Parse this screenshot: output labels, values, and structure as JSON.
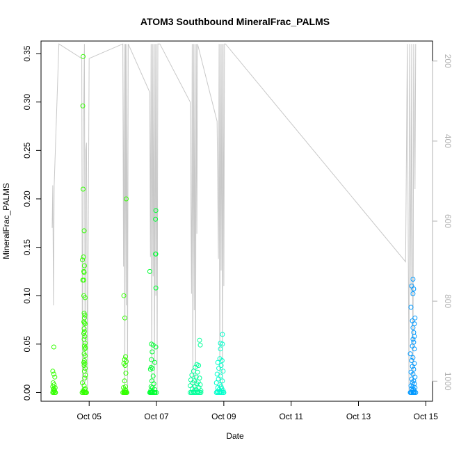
{
  "chart_data": {
    "type": "scatter",
    "title": "ATOM3 Southbound MineralFrac_PALMS",
    "xlabel": "Date",
    "ylabel": "MineralFrac_PALMS",
    "x_ticks": [
      {
        "label": "Oct 05",
        "day": 5
      },
      {
        "label": "Oct 07",
        "day": 7
      },
      {
        "label": "Oct 09",
        "day": 9
      },
      {
        "label": "Oct 11",
        "day": 11
      },
      {
        "label": "Oct 13",
        "day": 13
      },
      {
        "label": "Oct 15",
        "day": 15
      }
    ],
    "xlim": [
      3.57,
      15.2
    ],
    "ylim": [
      -0.009,
      0.363
    ],
    "y_ticks": [
      0.0,
      0.05,
      0.1,
      0.15,
      0.2,
      0.25,
      0.3,
      0.35
    ],
    "y_tick_labels": [
      "0.00",
      "0.05",
      "0.10",
      "0.15",
      "0.20",
      "0.25",
      "0.30",
      "0.35"
    ],
    "y2_ticks": [
      200,
      400,
      600,
      800,
      1000
    ],
    "y2_tick_labels": [
      "200",
      "400",
      "600",
      "800",
      "1000"
    ],
    "y2lim": [
      1050,
      150
    ],
    "colors": {
      "flight1": "#33ff00",
      "flight2": "#00ff33",
      "flight3": "#00ff99",
      "flight4": "#00ffcc",
      "flight5": "#0099ff",
      "pressure": "#c8c8c8"
    },
    "series": [
      {
        "color": "flight1",
        "points": [
          [
            3.95,
            0.047
          ],
          [
            3.92,
            0.022
          ],
          [
            3.95,
            0.019
          ],
          [
            3.98,
            0.016
          ],
          [
            3.93,
            0.01
          ],
          [
            3.96,
            0.008
          ],
          [
            3.92,
            0.006
          ],
          [
            3.99,
            0.005
          ],
          [
            3.95,
            0.004
          ],
          [
            3.94,
            0.003
          ],
          [
            3.97,
            0.002
          ],
          [
            3.93,
            0.001
          ],
          [
            3.96,
            0.0
          ],
          [
            3.99,
            0.0
          ],
          [
            3.92,
            0.0
          ],
          [
            4.0,
            0.0
          ],
          [
            4.82,
            0.347
          ],
          [
            4.81,
            0.296
          ],
          [
            4.82,
            0.21
          ],
          [
            4.85,
            0.167
          ],
          [
            4.83,
            0.14
          ],
          [
            4.8,
            0.137
          ],
          [
            4.86,
            0.131
          ],
          [
            4.84,
            0.125
          ],
          [
            4.85,
            0.124
          ],
          [
            4.81,
            0.116
          ],
          [
            4.84,
            0.116
          ],
          [
            4.84,
            0.1
          ],
          [
            4.88,
            0.098
          ],
          [
            4.85,
            0.082
          ],
          [
            4.87,
            0.08
          ],
          [
            4.86,
            0.077
          ],
          [
            4.84,
            0.073
          ],
          [
            4.86,
            0.072
          ],
          [
            4.88,
            0.071
          ],
          [
            4.85,
            0.066
          ],
          [
            4.86,
            0.063
          ],
          [
            4.84,
            0.061
          ],
          [
            4.87,
            0.058
          ],
          [
            4.85,
            0.055
          ],
          [
            4.88,
            0.051
          ],
          [
            4.86,
            0.048
          ],
          [
            4.89,
            0.046
          ],
          [
            4.87,
            0.045
          ],
          [
            4.85,
            0.04
          ],
          [
            4.88,
            0.038
          ],
          [
            4.86,
            0.033
          ],
          [
            4.84,
            0.031
          ],
          [
            4.87,
            0.03
          ],
          [
            4.85,
            0.028
          ],
          [
            4.88,
            0.025
          ],
          [
            4.86,
            0.022
          ],
          [
            4.89,
            0.018
          ],
          [
            4.87,
            0.015
          ],
          [
            4.8,
            0.01
          ],
          [
            4.85,
            0.007
          ],
          [
            4.88,
            0.004
          ],
          [
            4.86,
            0.003
          ],
          [
            4.82,
            0.002
          ],
          [
            4.84,
            0.001
          ],
          [
            4.86,
            0.0
          ],
          [
            4.88,
            0.0
          ],
          [
            4.9,
            0.0
          ],
          [
            4.82,
            0.0
          ],
          [
            4.92,
            0.0
          ],
          [
            4.79,
            0.0
          ],
          [
            6.1,
            0.2
          ],
          [
            6.03,
            0.1
          ],
          [
            6.06,
            0.077
          ],
          [
            6.08,
            0.037
          ],
          [
            6.05,
            0.034
          ],
          [
            6.1,
            0.032
          ],
          [
            6.03,
            0.03
          ],
          [
            6.07,
            0.028
          ],
          [
            6.09,
            0.02
          ],
          [
            6.05,
            0.012
          ],
          [
            6.08,
            0.006
          ],
          [
            6.02,
            0.005
          ],
          [
            6.06,
            0.003
          ],
          [
            6.09,
            0.002
          ],
          [
            6.04,
            0.001
          ],
          [
            6.07,
            0.0
          ],
          [
            6.1,
            0.0
          ],
          [
            6.03,
            0.0
          ],
          [
            6.12,
            0.0
          ],
          [
            6.0,
            0.0
          ],
          [
            6.05,
            0.0
          ],
          [
            6.08,
            0.0
          ]
        ]
      },
      {
        "color": "flight2",
        "points": [
          [
            6.98,
            0.188
          ],
          [
            6.97,
            0.179
          ],
          [
            6.97,
            0.143
          ],
          [
            6.98,
            0.143
          ],
          [
            6.8,
            0.125
          ],
          [
            6.98,
            0.108
          ],
          [
            6.85,
            0.05
          ],
          [
            6.9,
            0.049
          ],
          [
            6.98,
            0.047
          ],
          [
            6.87,
            0.042
          ],
          [
            6.85,
            0.034
          ],
          [
            6.95,
            0.031
          ],
          [
            6.84,
            0.026
          ],
          [
            6.88,
            0.025
          ],
          [
            6.82,
            0.024
          ],
          [
            6.9,
            0.017
          ],
          [
            6.86,
            0.012
          ],
          [
            6.92,
            0.009
          ],
          [
            6.84,
            0.006
          ],
          [
            6.88,
            0.005
          ],
          [
            6.95,
            0.003
          ],
          [
            6.83,
            0.002
          ],
          [
            6.87,
            0.001
          ],
          [
            6.8,
            0.0
          ],
          [
            6.84,
            0.0
          ],
          [
            6.88,
            0.0
          ],
          [
            6.92,
            0.0
          ],
          [
            6.96,
            0.0
          ],
          [
            7.0,
            0.0
          ],
          [
            6.86,
            0.0
          ],
          [
            6.94,
            0.0
          ],
          [
            6.82,
            0.0
          ]
        ]
      },
      {
        "color": "flight3",
        "points": [
          [
            8.28,
            0.054
          ],
          [
            8.3,
            0.049
          ],
          [
            8.2,
            0.029
          ],
          [
            8.25,
            0.028
          ],
          [
            8.15,
            0.026
          ],
          [
            8.1,
            0.022
          ],
          [
            8.22,
            0.021
          ],
          [
            8.05,
            0.018
          ],
          [
            8.18,
            0.016
          ],
          [
            8.28,
            0.015
          ],
          [
            8.02,
            0.013
          ],
          [
            8.12,
            0.012
          ],
          [
            8.24,
            0.011
          ],
          [
            8.08,
            0.01
          ],
          [
            8.2,
            0.009
          ],
          [
            8.3,
            0.008
          ],
          [
            8.0,
            0.007
          ],
          [
            8.14,
            0.006
          ],
          [
            8.26,
            0.005
          ],
          [
            8.06,
            0.004
          ],
          [
            8.18,
            0.003
          ],
          [
            8.32,
            0.002
          ],
          [
            8.1,
            0.001
          ],
          [
            8.22,
            0.001
          ],
          [
            8.0,
            0.0
          ],
          [
            8.04,
            0.0
          ],
          [
            8.08,
            0.0
          ],
          [
            8.12,
            0.0
          ],
          [
            8.16,
            0.0
          ],
          [
            8.2,
            0.0
          ],
          [
            8.24,
            0.0
          ],
          [
            8.28,
            0.0
          ],
          [
            8.32,
            0.0
          ]
        ]
      },
      {
        "color": "flight4",
        "points": [
          [
            8.96,
            0.06
          ],
          [
            8.9,
            0.051
          ],
          [
            8.96,
            0.05
          ],
          [
            8.9,
            0.045
          ],
          [
            8.88,
            0.035
          ],
          [
            8.95,
            0.033
          ],
          [
            8.82,
            0.031
          ],
          [
            8.92,
            0.028
          ],
          [
            8.85,
            0.025
          ],
          [
            8.98,
            0.022
          ],
          [
            8.8,
            0.019
          ],
          [
            8.9,
            0.017
          ],
          [
            8.84,
            0.014
          ],
          [
            8.96,
            0.012
          ],
          [
            8.78,
            0.01
          ],
          [
            8.88,
            0.008
          ],
          [
            8.92,
            0.006
          ],
          [
            8.82,
            0.005
          ],
          [
            8.94,
            0.004
          ],
          [
            8.86,
            0.003
          ],
          [
            8.98,
            0.002
          ],
          [
            8.8,
            0.001
          ],
          [
            8.9,
            0.001
          ],
          [
            8.78,
            0.0
          ],
          [
            8.82,
            0.0
          ],
          [
            8.86,
            0.0
          ],
          [
            8.9,
            0.0
          ],
          [
            8.94,
            0.0
          ],
          [
            8.98,
            0.0
          ],
          [
            9.0,
            0.0
          ]
        ]
      },
      {
        "color": "flight5",
        "points": [
          [
            14.62,
            0.117
          ],
          [
            14.58,
            0.11
          ],
          [
            14.64,
            0.107
          ],
          [
            14.62,
            0.102
          ],
          [
            14.56,
            0.088
          ],
          [
            14.68,
            0.077
          ],
          [
            14.6,
            0.074
          ],
          [
            14.66,
            0.071
          ],
          [
            14.62,
            0.067
          ],
          [
            14.64,
            0.062
          ],
          [
            14.66,
            0.058
          ],
          [
            14.62,
            0.055
          ],
          [
            14.64,
            0.052
          ],
          [
            14.6,
            0.048
          ],
          [
            14.66,
            0.045
          ],
          [
            14.54,
            0.04
          ],
          [
            14.62,
            0.036
          ],
          [
            14.58,
            0.033
          ],
          [
            14.66,
            0.03
          ],
          [
            14.6,
            0.027
          ],
          [
            14.64,
            0.024
          ],
          [
            14.56,
            0.021
          ],
          [
            14.62,
            0.019
          ],
          [
            14.68,
            0.016
          ],
          [
            14.58,
            0.014
          ],
          [
            14.64,
            0.012
          ],
          [
            14.6,
            0.01
          ],
          [
            14.66,
            0.009
          ],
          [
            14.56,
            0.007
          ],
          [
            14.62,
            0.006
          ],
          [
            14.68,
            0.005
          ],
          [
            14.58,
            0.004
          ],
          [
            14.64,
            0.003
          ],
          [
            14.6,
            0.002
          ],
          [
            14.66,
            0.001
          ],
          [
            14.54,
            0.0
          ],
          [
            14.58,
            0.0
          ],
          [
            14.62,
            0.0
          ],
          [
            14.66,
            0.0
          ],
          [
            14.7,
            0.0
          ],
          [
            14.56,
            0.0
          ],
          [
            14.64,
            0.0
          ]
        ]
      }
    ],
    "pressure_trace": [
      [
        3.9,
        0.17
      ],
      [
        3.92,
        0.214
      ],
      [
        3.94,
        0.09
      ],
      [
        3.96,
        0.214
      ],
      [
        4.1,
        0.36
      ],
      [
        4.78,
        0.345
      ],
      [
        4.8,
        0.0
      ],
      [
        4.82,
        0.23
      ],
      [
        4.86,
        0.36
      ],
      [
        4.88,
        0.01
      ],
      [
        4.9,
        0.25
      ],
      [
        4.92,
        0.258
      ],
      [
        4.95,
        0.0
      ],
      [
        5.0,
        0.345
      ],
      [
        6.0,
        0.36
      ],
      [
        6.02,
        0.13
      ],
      [
        6.04,
        0.36
      ],
      [
        6.06,
        0.0
      ],
      [
        6.08,
        0.36
      ],
      [
        6.1,
        0.09
      ],
      [
        6.12,
        0.36
      ],
      [
        6.14,
        0.0
      ],
      [
        6.16,
        0.36
      ],
      [
        6.8,
        0.31
      ],
      [
        6.82,
        0.14
      ],
      [
        6.84,
        0.36
      ],
      [
        6.86,
        0.0
      ],
      [
        6.88,
        0.36
      ],
      [
        6.9,
        0.12
      ],
      [
        6.92,
        0.36
      ],
      [
        6.94,
        0.0
      ],
      [
        6.96,
        0.36
      ],
      [
        6.98,
        0.1
      ],
      [
        7.0,
        0.36
      ],
      [
        7.02,
        0.0
      ],
      [
        7.04,
        0.36
      ],
      [
        7.1,
        0.36
      ],
      [
        8.0,
        0.3
      ],
      [
        8.04,
        0.102
      ],
      [
        8.06,
        0.36
      ],
      [
        8.08,
        0.0
      ],
      [
        8.1,
        0.36
      ],
      [
        8.12,
        0.085
      ],
      [
        8.14,
        0.36
      ],
      [
        8.16,
        0.0
      ],
      [
        8.18,
        0.36
      ],
      [
        8.2,
        0.164
      ],
      [
        8.22,
        0.36
      ],
      [
        8.8,
        0.28
      ],
      [
        8.84,
        0.138
      ],
      [
        8.86,
        0.36
      ],
      [
        8.88,
        0.0
      ],
      [
        8.9,
        0.36
      ],
      [
        8.92,
        0.126
      ],
      [
        8.94,
        0.36
      ],
      [
        8.96,
        0.0
      ],
      [
        8.98,
        0.36
      ],
      [
        9.0,
        0.11
      ],
      [
        9.02,
        0.36
      ],
      [
        9.05,
        0.36
      ],
      [
        14.4,
        0.135
      ],
      [
        14.45,
        0.36
      ],
      [
        14.5,
        0.0
      ],
      [
        14.52,
        0.36
      ],
      [
        14.56,
        0.1
      ],
      [
        14.58,
        0.36
      ],
      [
        14.62,
        0.0
      ],
      [
        14.64,
        0.36
      ],
      [
        14.68,
        0.21
      ],
      [
        14.7,
        0.36
      ]
    ]
  }
}
